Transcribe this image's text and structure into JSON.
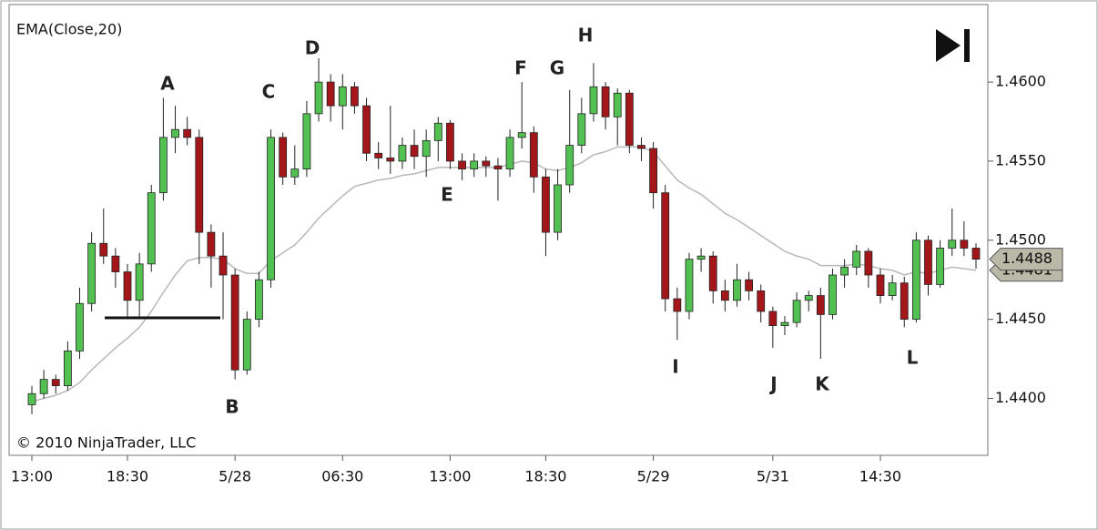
{
  "chart_data": {
    "type": "candlestick",
    "indicator_label": "EMA(Close,20)",
    "copyright": "© 2010 NinjaTrader, LLC",
    "annotations": [
      "A",
      "B",
      "C",
      "D",
      "E",
      "F",
      "G",
      "H",
      "I",
      "J",
      "K",
      "L"
    ],
    "up_color": "#52c152",
    "down_color": "#a3171b",
    "open": [
      1.4396,
      1.4403,
      1.4412,
      1.4408,
      1.443,
      1.446,
      1.4498,
      1.449,
      1.448,
      1.4462,
      1.4485,
      1.453,
      1.4565,
      1.457,
      1.4565,
      1.4505,
      1.449,
      1.4478,
      1.4418,
      1.445,
      1.4475,
      1.4565,
      1.454,
      1.4545,
      1.458,
      1.46,
      1.4585,
      1.4597,
      1.4585,
      1.4555,
      1.4552,
      1.455,
      1.456,
      1.4553,
      1.4563,
      1.4574,
      1.455,
      1.4545,
      1.455,
      1.4547,
      1.4545,
      1.4565,
      1.4568,
      1.454,
      1.4505,
      1.4535,
      1.456,
      1.458,
      1.4597,
      1.4578,
      1.4593,
      1.456,
      1.4558,
      1.453,
      1.4463,
      1.4455,
      1.4488,
      1.449,
      1.4468,
      1.4462,
      1.4475,
      1.4468,
      1.4455,
      1.4446,
      1.4448,
      1.4462,
      1.4465,
      1.4453,
      1.4478,
      1.4483,
      1.4493,
      1.4478,
      1.4465,
      1.4473,
      1.445,
      1.45,
      1.4472,
      1.4495,
      1.45,
      1.4495
    ],
    "high": [
      1.4408,
      1.4418,
      1.4415,
      1.4436,
      1.447,
      1.4505,
      1.452,
      1.4495,
      1.4485,
      1.4492,
      1.4535,
      1.459,
      1.4585,
      1.4578,
      1.457,
      1.451,
      1.4505,
      1.4482,
      1.4455,
      1.448,
      1.457,
      1.4568,
      1.456,
      1.4588,
      1.4615,
      1.4605,
      1.4605,
      1.46,
      1.459,
      1.4562,
      1.4585,
      1.4565,
      1.457,
      1.457,
      1.4578,
      1.4576,
      1.4555,
      1.4555,
      1.4553,
      1.4552,
      1.457,
      1.46,
      1.4572,
      1.4545,
      1.4545,
      1.4595,
      1.459,
      1.4612,
      1.46,
      1.4596,
      1.4595,
      1.4565,
      1.4562,
      1.4535,
      1.447,
      1.4492,
      1.4495,
      1.4493,
      1.4475,
      1.4485,
      1.448,
      1.4472,
      1.4458,
      1.4452,
      1.4467,
      1.4468,
      1.447,
      1.4482,
      1.4488,
      1.4497,
      1.4495,
      1.4482,
      1.4478,
      1.4477,
      1.4505,
      1.4503,
      1.45,
      1.452,
      1.4512,
      1.4498
    ],
    "low": [
      1.439,
      1.44,
      1.4403,
      1.4405,
      1.4425,
      1.4455,
      1.4485,
      1.447,
      1.445,
      1.445,
      1.448,
      1.4525,
      1.4555,
      1.456,
      1.4485,
      1.447,
      1.445,
      1.4412,
      1.4415,
      1.4445,
      1.447,
      1.4535,
      1.4535,
      1.454,
      1.4575,
      1.4575,
      1.457,
      1.458,
      1.455,
      1.4545,
      1.4542,
      1.4545,
      1.4545,
      1.454,
      1.455,
      1.4545,
      1.4538,
      1.454,
      1.454,
      1.4525,
      1.454,
      1.4558,
      1.453,
      1.449,
      1.45,
      1.453,
      1.4555,
      1.4575,
      1.457,
      1.456,
      1.4555,
      1.455,
      1.452,
      1.4455,
      1.4437,
      1.445,
      1.448,
      1.446,
      1.4455,
      1.4458,
      1.4462,
      1.4448,
      1.4432,
      1.444,
      1.4445,
      1.4455,
      1.4425,
      1.445,
      1.447,
      1.4478,
      1.447,
      1.446,
      1.4462,
      1.4445,
      1.4448,
      1.4465,
      1.447,
      1.449,
      1.449,
      1.4482
    ],
    "close": [
      1.4403,
      1.4412,
      1.4408,
      1.443,
      1.446,
      1.4498,
      1.449,
      1.448,
      1.4462,
      1.4485,
      1.453,
      1.4565,
      1.457,
      1.4565,
      1.4505,
      1.449,
      1.4478,
      1.4418,
      1.445,
      1.4475,
      1.4565,
      1.454,
      1.4545,
      1.458,
      1.46,
      1.4585,
      1.4597,
      1.4585,
      1.4555,
      1.4552,
      1.455,
      1.456,
      1.4553,
      1.4563,
      1.4574,
      1.455,
      1.4545,
      1.455,
      1.4547,
      1.4545,
      1.4565,
      1.4568,
      1.454,
      1.4505,
      1.4535,
      1.456,
      1.458,
      1.4597,
      1.4578,
      1.4593,
      1.456,
      1.4558,
      1.453,
      1.4463,
      1.4455,
      1.4488,
      1.449,
      1.4468,
      1.4462,
      1.4475,
      1.4468,
      1.4455,
      1.4446,
      1.4448,
      1.4462,
      1.4465,
      1.4453,
      1.4478,
      1.4483,
      1.4493,
      1.4478,
      1.4465,
      1.4473,
      1.445,
      1.45,
      1.4472,
      1.4495,
      1.45,
      1.4495,
      1.4488
    ],
    "last_price_label": "1.4488",
    "ema": {
      "color": "#b8b8b8",
      "label": "1.4481",
      "values": [
        1.4398,
        1.44,
        1.4402,
        1.4405,
        1.441,
        1.4418,
        1.4425,
        1.4432,
        1.4438,
        1.4445,
        1.4455,
        1.4467,
        1.4478,
        1.4487,
        1.4489,
        1.4489,
        1.4488,
        1.4482,
        1.4479,
        1.4479,
        1.4487,
        1.4492,
        1.4497,
        1.4505,
        1.4514,
        1.4521,
        1.4528,
        1.4534,
        1.4536,
        1.4538,
        1.4539,
        1.4541,
        1.4542,
        1.4544,
        1.4546,
        1.4546,
        1.4546,
        1.4546,
        1.4546,
        1.4546,
        1.4548,
        1.455,
        1.4549,
        1.4545,
        1.4544,
        1.4546,
        1.4549,
        1.4554,
        1.4556,
        1.4559,
        1.4559,
        1.4559,
        1.4556,
        1.4547,
        1.4538,
        1.4533,
        1.4529,
        1.4523,
        1.4517,
        1.4513,
        1.4508,
        1.4503,
        1.4498,
        1.4493,
        1.449,
        1.4488,
        1.4484,
        1.4484,
        1.4484,
        1.4485,
        1.4484,
        1.4482,
        1.4481,
        1.4478,
        1.448,
        1.4479,
        1.4481,
        1.4483,
        1.4482,
        1.4481
      ]
    },
    "xlim": [
      0,
      79
    ],
    "xticks": [
      {
        "value": 0,
        "label": "13:00"
      },
      {
        "value": 8,
        "label": "18:30"
      },
      {
        "value": 17,
        "label": "5/28"
      },
      {
        "value": 26,
        "label": "06:30"
      },
      {
        "value": 35,
        "label": "13:00"
      },
      {
        "value": 43,
        "label": "18:30"
      },
      {
        "value": 52,
        "label": "5/29"
      },
      {
        "value": 62,
        "label": "5/31"
      },
      {
        "value": 71,
        "label": "14:30"
      }
    ],
    "ylim": [
      1.4364,
      1.4649
    ],
    "yticks": [
      {
        "value": 1.44,
        "label": "1.4400"
      },
      {
        "value": 1.445,
        "label": "1.4450"
      },
      {
        "value": 1.45,
        "label": "1.4500"
      },
      {
        "value": 1.455,
        "label": "1.4550"
      },
      {
        "value": 1.46,
        "label": "1.4600"
      }
    ]
  }
}
